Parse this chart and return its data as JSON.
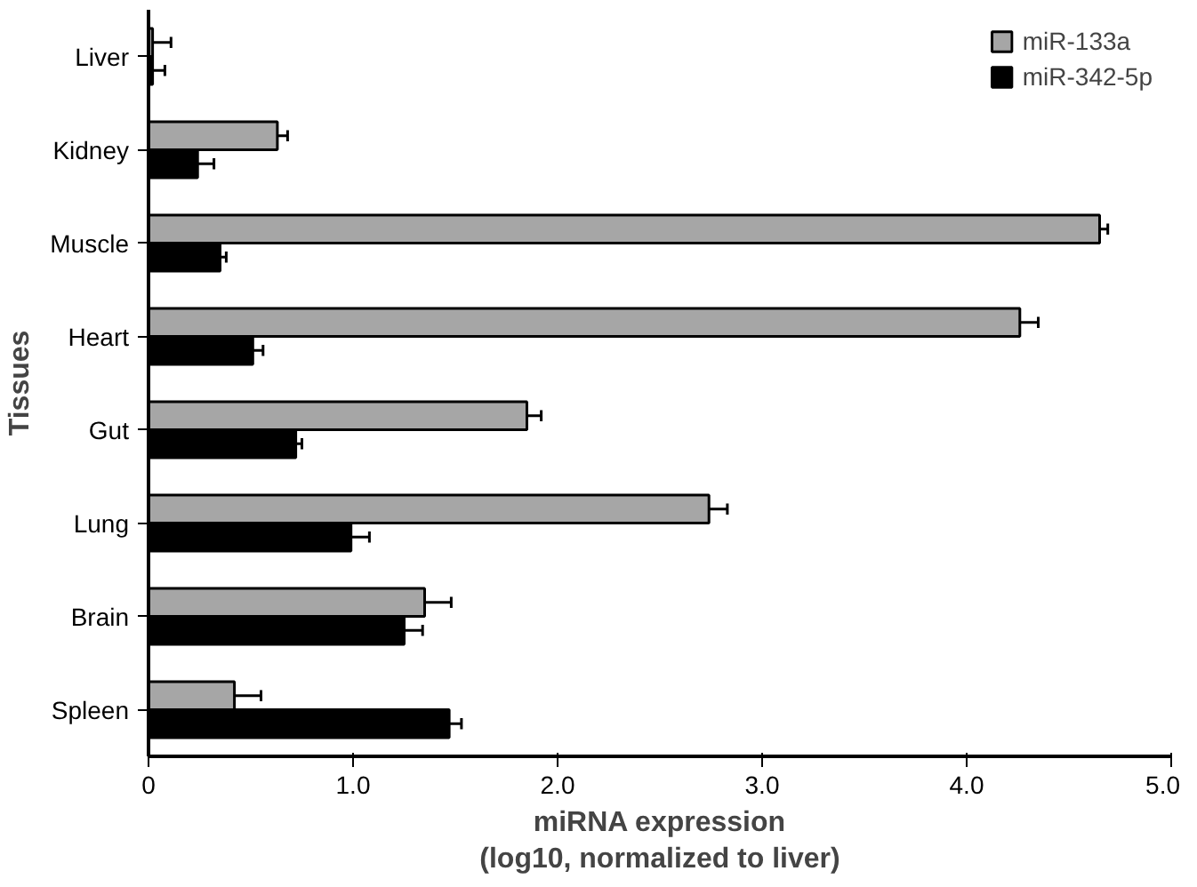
{
  "chart_data": {
    "type": "bar",
    "orientation": "horizontal",
    "xlabel": "miRNA expression\n(log10, normalized to liver)",
    "ylabel": "Tissues",
    "categories": [
      "Liver",
      "Kidney",
      "Muscle",
      "Heart",
      "Gut",
      "Lung",
      "Brain",
      "Spleen"
    ],
    "series": [
      {
        "name": "miR-133a",
        "color": "#a6a6a6",
        "values": [
          0.02,
          0.63,
          4.65,
          4.26,
          1.85,
          2.74,
          1.35,
          0.42
        ],
        "errors": [
          [
            0.02,
            0.11
          ],
          [
            0.63,
            0.68
          ],
          [
            4.65,
            4.69
          ],
          [
            4.26,
            4.35
          ],
          [
            1.85,
            1.92
          ],
          [
            2.74,
            2.83
          ],
          [
            1.35,
            1.48
          ],
          [
            0.42,
            0.55
          ]
        ]
      },
      {
        "name": "miR-342-5p",
        "color": "#000000",
        "values": [
          0.02,
          0.24,
          0.35,
          0.51,
          0.72,
          0.99,
          1.25,
          1.47
        ],
        "errors": [
          [
            0.02,
            0.08
          ],
          [
            0.24,
            0.32
          ],
          [
            0.35,
            0.38
          ],
          [
            0.51,
            0.56
          ],
          [
            0.72,
            0.75
          ],
          [
            0.99,
            1.08
          ],
          [
            1.25,
            1.34
          ],
          [
            1.47,
            1.53
          ]
        ]
      }
    ],
    "xlim": [
      0,
      5
    ],
    "xticks": [
      {
        "value": 0,
        "label": "0"
      },
      {
        "value": 1,
        "label": "1.0"
      },
      {
        "value": 2,
        "label": "2.0"
      },
      {
        "value": 3,
        "label": "3.0"
      },
      {
        "value": 4,
        "label": "4.0"
      },
      {
        "value": 5,
        "label": "5.0"
      }
    ],
    "grid": false,
    "legend": "top right"
  }
}
